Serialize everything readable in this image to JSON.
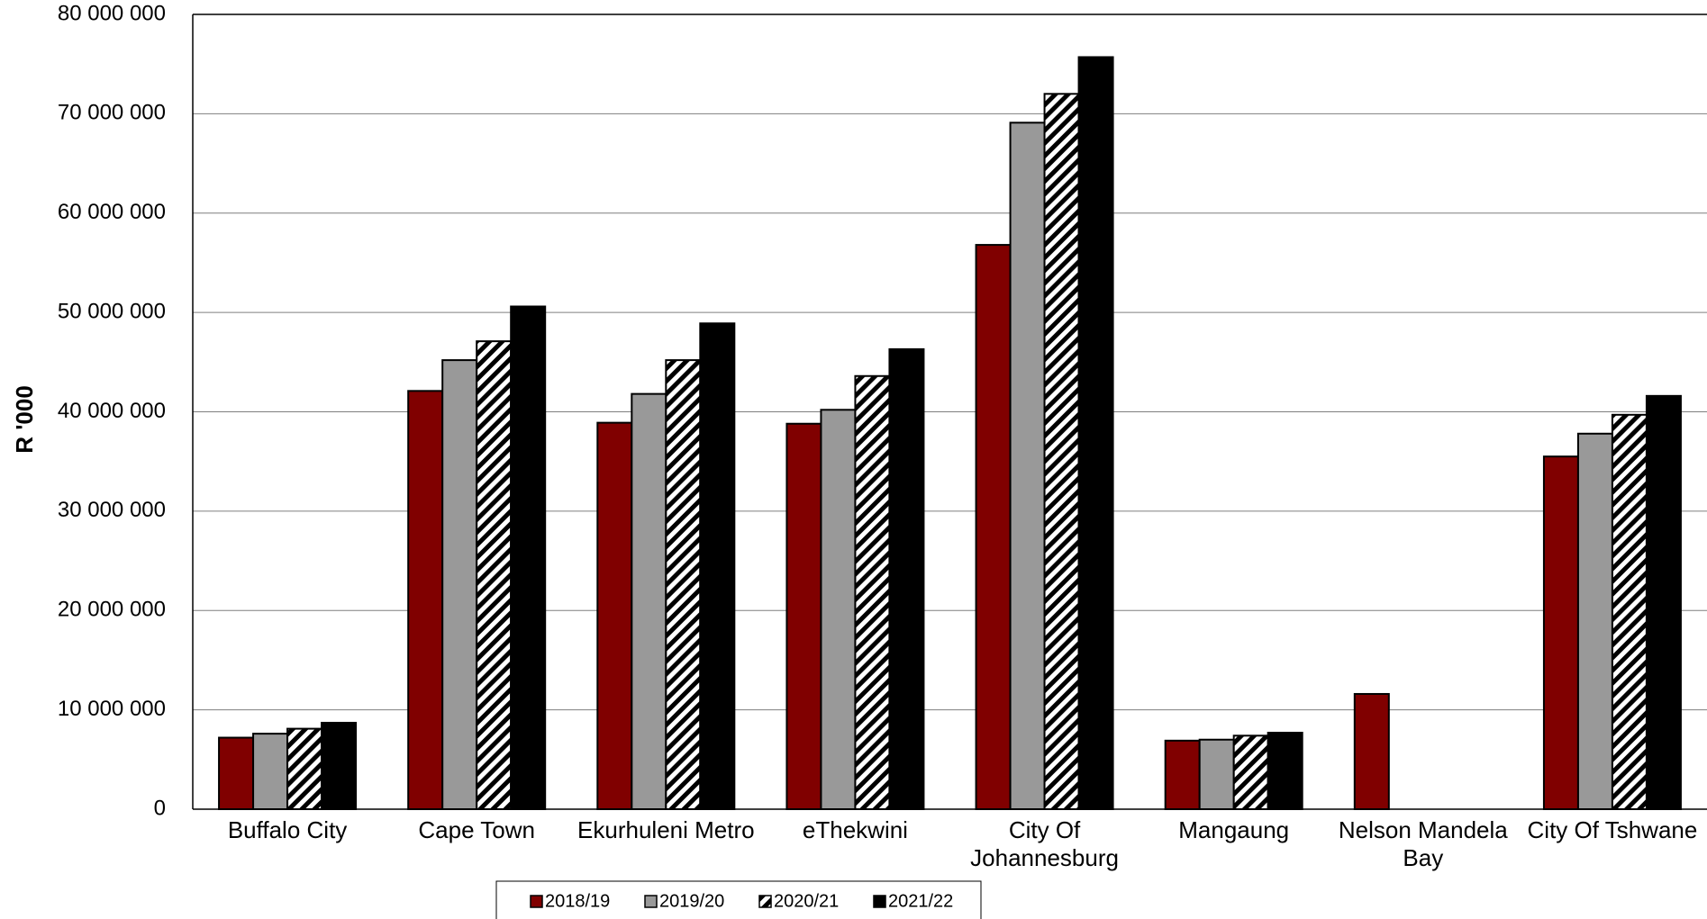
{
  "chart_data": {
    "type": "bar",
    "title": "",
    "xlabel": "",
    "ylabel": "R '000",
    "ylim": [
      0,
      80000000
    ],
    "yticks": [
      0,
      10000000,
      20000000,
      30000000,
      40000000,
      50000000,
      60000000,
      70000000,
      80000000
    ],
    "ytick_labels": [
      "0",
      "10 000 000",
      "20 000 000",
      "30 000 000",
      "40 000 000",
      "50 000 000",
      "60 000 000",
      "70 000 000",
      "80 000 000"
    ],
    "categories": [
      [
        "Buffalo City"
      ],
      [
        "Cape Town"
      ],
      [
        "Ekurhuleni Metro"
      ],
      [
        "eThekwini"
      ],
      [
        "City Of",
        "Johannesburg"
      ],
      [
        "Mangaung"
      ],
      [
        "Nelson Mandela",
        "Bay"
      ],
      [
        "City Of Tshwane"
      ]
    ],
    "series": [
      {
        "name": "2018/19",
        "fill": "#800000",
        "pattern": "solid",
        "values": [
          7200000,
          42100000,
          38900000,
          38800000,
          56800000,
          6900000,
          11600000,
          35500000
        ]
      },
      {
        "name": "2019/20",
        "fill": "#999999",
        "pattern": "solid",
        "values": [
          7600000,
          45200000,
          41800000,
          40200000,
          69100000,
          7000000,
          null,
          37800000
        ]
      },
      {
        "name": "2020/21",
        "fill": "#ffffff",
        "pattern": "diagonal-stripes",
        "values": [
          8100000,
          47100000,
          45200000,
          43600000,
          72000000,
          7400000,
          null,
          39700000
        ]
      },
      {
        "name": "2021/22",
        "fill": "#000000",
        "pattern": "solid",
        "values": [
          8700000,
          50600000,
          48900000,
          46300000,
          75700000,
          7700000,
          null,
          41600000
        ]
      }
    ],
    "grid": true,
    "legend_position": "bottom"
  }
}
